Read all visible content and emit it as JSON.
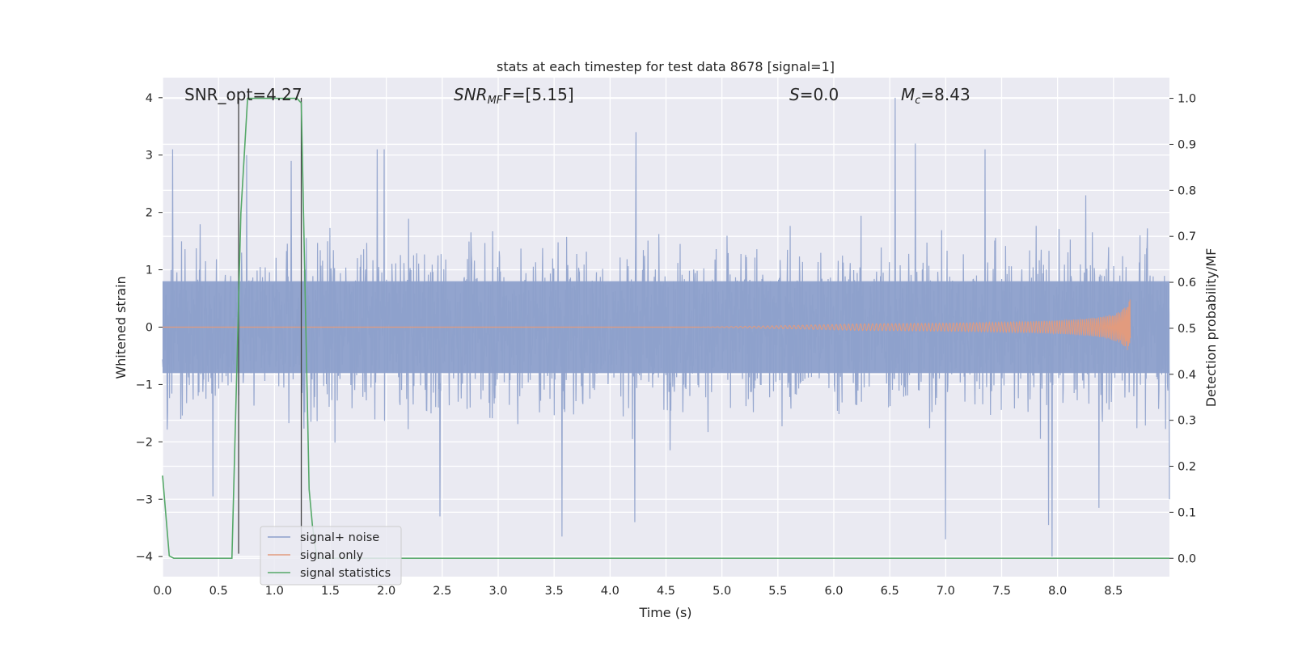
{
  "chart_data": {
    "type": "line",
    "title": "stats at each timestep for test data 8678 [signal=1]",
    "xlabel": "Time (s)",
    "ylabel": "Whitened strain",
    "ylabel_right": "Detection probability/MF",
    "xlim": [
      0,
      9.0
    ],
    "ylim": [
      -4.35,
      4.35
    ],
    "ylim_right": [
      -0.04,
      1.045
    ],
    "x_ticks": [
      "0.0",
      "0.5",
      "1.0",
      "1.5",
      "2.0",
      "2.5",
      "3.0",
      "3.5",
      "4.0",
      "4.5",
      "5.0",
      "5.5",
      "6.0",
      "6.5",
      "7.0",
      "7.5",
      "8.0",
      "8.5"
    ],
    "y_ticks": [
      "−4",
      "−3",
      "−2",
      "−1",
      "0",
      "1",
      "2",
      "3",
      "4"
    ],
    "y_ticks_right": [
      "0.0",
      "0.1",
      "0.2",
      "0.3",
      "0.4",
      "0.5",
      "0.6",
      "0.7",
      "0.8",
      "0.9",
      "1.0"
    ],
    "grid": true,
    "legend_position": "lower-left",
    "annotations": {
      "snr_opt": "SNR_opt=4.27",
      "snr_mf_main": "SNR",
      "snr_mf_sub": "MF",
      "snr_mf_tail": "F=[5.15]",
      "s_main": "S",
      "s_tail": "=0.0",
      "mc_main": "M",
      "mc_sub": "c",
      "mc_tail": "=8.43"
    },
    "vertical_lines_x": [
      0.68,
      1.24
    ],
    "series": [
      {
        "name": "signal+ noise",
        "color": "#8da0cb",
        "description_level": "noise",
        "envelope_core": [
          -0.8,
          0.8
        ],
        "envelope_typical": [
          -2.2,
          2.2
        ],
        "spikes": [
          {
            "x": 0.09,
            "y": 3.1
          },
          {
            "x": 0.75,
            "y": 3.0
          },
          {
            "x": 1.15,
            "y": 2.9
          },
          {
            "x": 1.92,
            "y": 3.1
          },
          {
            "x": 1.98,
            "y": 3.1
          },
          {
            "x": 4.23,
            "y": 3.4
          },
          {
            "x": 6.55,
            "y": 4.0
          },
          {
            "x": 6.73,
            "y": 3.2
          },
          {
            "x": 7.35,
            "y": 3.1
          },
          {
            "x": 2.48,
            "y": -3.3
          },
          {
            "x": 3.57,
            "y": -3.65
          },
          {
            "x": 4.22,
            "y": -3.4
          },
          {
            "x": 7.0,
            "y": -3.7
          },
          {
            "x": 7.92,
            "y": -3.45
          },
          {
            "x": 7.95,
            "y": -4.0
          },
          {
            "x": 8.37,
            "y": -3.15
          },
          {
            "x": 0.45,
            "y": -2.95
          },
          {
            "x": 9.0,
            "y": -3.0
          }
        ]
      },
      {
        "name": "signal only",
        "color": "#e29b7e",
        "chirp_start": 4.8,
        "chirp_end": 8.65,
        "chirp_peak_amplitude": 0.5
      },
      {
        "name": "signal statistics",
        "color": "#55a868",
        "axis": "right",
        "x": [
          0.0,
          0.06,
          0.1,
          0.15,
          0.62,
          0.7,
          0.76,
          0.8,
          1.2,
          1.24,
          1.31,
          1.34,
          1.38,
          1.45,
          9.0
        ],
        "y": [
          0.18,
          0.005,
          0.0,
          0.0,
          0.0,
          0.75,
          1.0,
          1.0,
          1.0,
          0.99,
          0.15,
          0.07,
          0.0,
          0.0,
          0.0
        ]
      }
    ]
  }
}
